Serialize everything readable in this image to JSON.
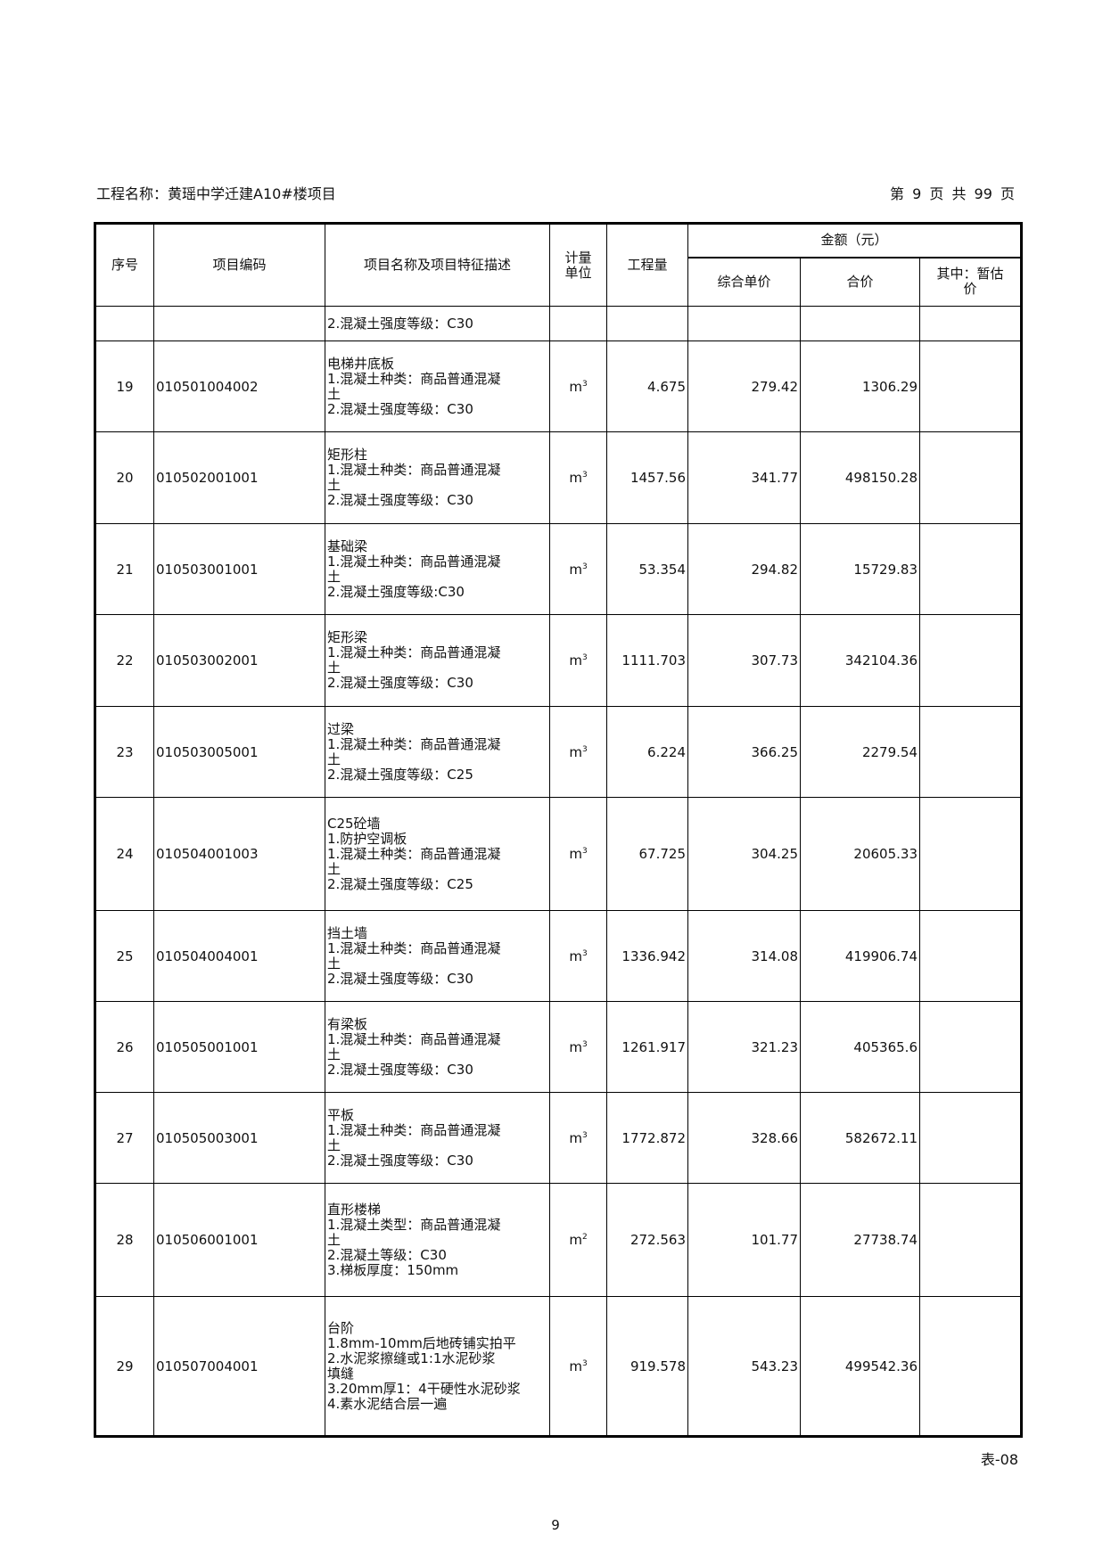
{
  "header": {
    "project_label": "工程名称：黄瑶中学迁建A10#楼项目",
    "page_info": "第 9 页  共 99 页"
  },
  "columns": {
    "seq": "序号",
    "code": "项目编码",
    "name": "项目名称及项目特征描述",
    "unit": "计量\n单位",
    "qty": "工程量",
    "amount": "金额（元）",
    "unit_price": "综合单价",
    "total": "合价",
    "provisional": "其中：暂估\n价"
  },
  "rows": [
    {
      "seq": "",
      "code": "",
      "desc": "2.混凝土强度等级：C30",
      "unit": "",
      "unit_sup": "",
      "qty": "",
      "price": "",
      "total": ""
    },
    {
      "seq": "19",
      "code": "010501004002",
      "desc": "电梯井底板\n1.混凝土种类：商品普通混凝\n土\n2.混凝土强度等级：C30",
      "unit": "m",
      "unit_sup": "3",
      "qty": "4.675",
      "price": "279.42",
      "total": "1306.29"
    },
    {
      "seq": "20",
      "code": "010502001001",
      "desc": "矩形柱\n1.混凝土种类：商品普通混凝\n土\n2.混凝土强度等级：C30",
      "unit": "m",
      "unit_sup": "3",
      "qty": "1457.56",
      "price": "341.77",
      "total": "498150.28"
    },
    {
      "seq": "21",
      "code": "010503001001",
      "desc": "基础梁\n1.混凝土种类：商品普通混凝\n土\n2.混凝土强度等级:C30",
      "unit": "m",
      "unit_sup": "3",
      "qty": "53.354",
      "price": "294.82",
      "total": "15729.83"
    },
    {
      "seq": "22",
      "code": "010503002001",
      "desc": "矩形梁\n1.混凝土种类：商品普通混凝\n土\n2.混凝土强度等级：C30",
      "unit": "m",
      "unit_sup": "3",
      "qty": "1111.703",
      "price": "307.73",
      "total": "342104.36"
    },
    {
      "seq": "23",
      "code": "010503005001",
      "desc": "过梁\n1.混凝土种类：商品普通混凝\n土\n2.混凝土强度等级：C25",
      "unit": "m",
      "unit_sup": "3",
      "qty": "6.224",
      "price": "366.25",
      "total": "2279.54"
    },
    {
      "seq": "24",
      "code": "010504001003",
      "desc": "C25砼墙\n1.防护空调板\n1.混凝土种类：商品普通混凝\n土\n2.混凝土强度等级：C25",
      "unit": "m",
      "unit_sup": "3",
      "qty": "67.725",
      "price": "304.25",
      "total": "20605.33"
    },
    {
      "seq": "25",
      "code": "010504004001",
      "desc": "挡土墙\n1.混凝土种类：商品普通混凝\n土\n2.混凝土强度等级：C30",
      "unit": "m",
      "unit_sup": "3",
      "qty": "1336.942",
      "price": "314.08",
      "total": "419906.74"
    },
    {
      "seq": "26",
      "code": "010505001001",
      "desc": "有梁板\n1.混凝土种类：商品普通混凝\n土\n2.混凝土强度等级：C30",
      "unit": "m",
      "unit_sup": "3",
      "qty": "1261.917",
      "price": "321.23",
      "total": "405365.6"
    },
    {
      "seq": "27",
      "code": "010505003001",
      "desc": "平板\n1.混凝土种类：商品普通混凝\n土\n2.混凝土强度等级：C30",
      "unit": "m",
      "unit_sup": "3",
      "qty": "1772.872",
      "price": "328.66",
      "total": "582672.11"
    },
    {
      "seq": "28",
      "code": "010506001001",
      "desc": "直形楼梯\n1.混凝土类型：商品普通混凝\n土\n2.混凝土等级：C30\n3.梯板厚度：150mm",
      "unit": "m",
      "unit_sup": "2",
      "qty": "272.563",
      "price": "101.77",
      "total": "27738.74"
    },
    {
      "seq": "29",
      "code": "010507004001",
      "desc": "台阶\n1.8mm-10mm后地砖铺实拍平\n2.水泥浆擦缝或1:1水泥砂浆\n填缝\n3.20mm厚1：4干硬性水泥砂浆\n4.素水泥结合层一遍",
      "unit": "m",
      "unit_sup": "3",
      "qty": "919.578",
      "price": "543.23",
      "total": "499542.36"
    }
  ],
  "footer": {
    "table_no": "表-08",
    "page_number": "9"
  }
}
